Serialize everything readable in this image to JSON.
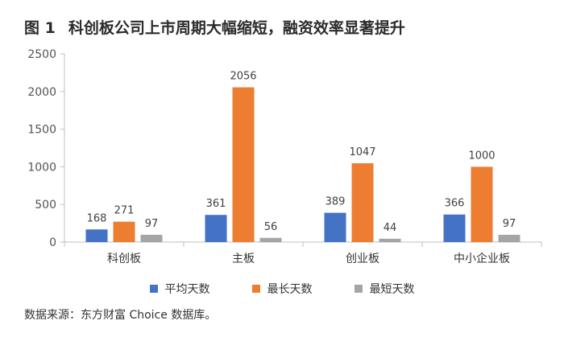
{
  "figure": {
    "number": "图 1",
    "title": "科创板公司上市周期大幅缩短，融资效率显著提升",
    "source": "数据来源：东方财富 Choice 数据库。"
  },
  "colors": {
    "平均天数": "#4472c4",
    "最长天数": "#ed7d31",
    "最短天数": "#a5a5a5",
    "axis": "#bfbfbf",
    "grid": "#d9d9d9"
  },
  "chart_data": {
    "type": "bar",
    "title": "",
    "xlabel": "",
    "ylabel": "",
    "ylim": [
      0,
      2500
    ],
    "yticks": [
      0,
      500,
      1000,
      1500,
      2000,
      2500
    ],
    "grid": false,
    "legend_position": "bottom",
    "categories": [
      "科创板",
      "主板",
      "创业板",
      "中小企业板"
    ],
    "series": [
      {
        "name": "平均天数",
        "values": [
          168,
          361,
          389,
          366
        ]
      },
      {
        "name": "最长天数",
        "values": [
          271,
          2056,
          1047,
          1000
        ]
      },
      {
        "name": "最短天数",
        "values": [
          97,
          56,
          44,
          97
        ]
      }
    ]
  }
}
